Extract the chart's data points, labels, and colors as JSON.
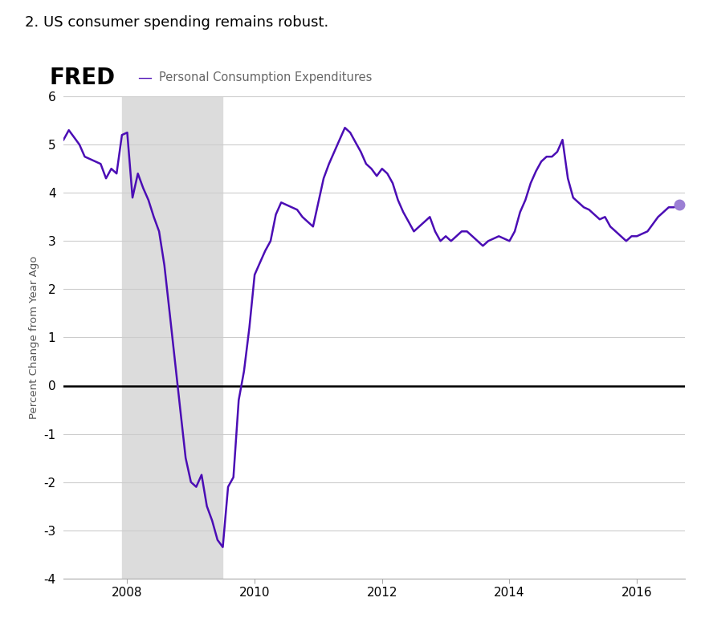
{
  "title_above": "2. US consumer spending remains robust.",
  "fred_label": "Personal Consumption Expenditures",
  "ylabel": "Percent Change from Year Ago",
  "line_color": "#4B0DB5",
  "recession_color": "#DCDCDC",
  "recession_start": 2007.917,
  "recession_end": 2009.5,
  "zero_line_color": "#000000",
  "background_color": "#ffffff",
  "xlim": [
    2007.0,
    2016.75
  ],
  "ylim": [
    -4,
    6
  ],
  "yticks": [
    -4,
    -3,
    -2,
    -1,
    0,
    1,
    2,
    3,
    4,
    5,
    6
  ],
  "xticks": [
    2008,
    2010,
    2012,
    2014,
    2016
  ],
  "grid_color": "#cccccc",
  "endpoint_color": "#9B7FD4",
  "data": {
    "dates": [
      2007.0,
      2007.083,
      2007.167,
      2007.25,
      2007.333,
      2007.417,
      2007.5,
      2007.583,
      2007.667,
      2007.75,
      2007.833,
      2007.917,
      2008.0,
      2008.083,
      2008.167,
      2008.25,
      2008.333,
      2008.417,
      2008.5,
      2008.583,
      2008.667,
      2008.75,
      2008.833,
      2008.917,
      2009.0,
      2009.083,
      2009.167,
      2009.25,
      2009.333,
      2009.417,
      2009.5,
      2009.583,
      2009.667,
      2009.75,
      2009.833,
      2009.917,
      2010.0,
      2010.083,
      2010.167,
      2010.25,
      2010.333,
      2010.417,
      2010.5,
      2010.583,
      2010.667,
      2010.75,
      2010.833,
      2010.917,
      2011.0,
      2011.083,
      2011.167,
      2011.25,
      2011.333,
      2011.417,
      2011.5,
      2011.583,
      2011.667,
      2011.75,
      2011.833,
      2011.917,
      2012.0,
      2012.083,
      2012.167,
      2012.25,
      2012.333,
      2012.417,
      2012.5,
      2012.583,
      2012.667,
      2012.75,
      2012.833,
      2012.917,
      2013.0,
      2013.083,
      2013.167,
      2013.25,
      2013.333,
      2013.417,
      2013.5,
      2013.583,
      2013.667,
      2013.75,
      2013.833,
      2013.917,
      2014.0,
      2014.083,
      2014.167,
      2014.25,
      2014.333,
      2014.417,
      2014.5,
      2014.583,
      2014.667,
      2014.75,
      2014.833,
      2014.917,
      2015.0,
      2015.083,
      2015.167,
      2015.25,
      2015.333,
      2015.417,
      2015.5,
      2015.583,
      2015.667,
      2015.75,
      2015.833,
      2015.917,
      2016.0,
      2016.083,
      2016.167,
      2016.25,
      2016.333,
      2016.417,
      2016.5,
      2016.583,
      2016.667
    ],
    "values": [
      5.1,
      5.3,
      5.15,
      5.0,
      4.75,
      4.7,
      4.65,
      4.6,
      4.3,
      4.5,
      4.4,
      5.2,
      5.25,
      3.9,
      4.4,
      4.1,
      3.85,
      3.5,
      3.2,
      2.5,
      1.5,
      0.5,
      -0.5,
      -1.5,
      -2.0,
      -2.1,
      -1.85,
      -2.5,
      -2.8,
      -3.2,
      -3.35,
      -2.1,
      -1.9,
      -0.3,
      0.3,
      1.2,
      2.3,
      2.55,
      2.8,
      3.0,
      3.55,
      3.8,
      3.75,
      3.7,
      3.65,
      3.5,
      3.4,
      3.3,
      3.8,
      4.3,
      4.6,
      4.85,
      5.1,
      5.35,
      5.25,
      5.05,
      4.85,
      4.6,
      4.5,
      4.35,
      4.5,
      4.4,
      4.2,
      3.85,
      3.6,
      3.4,
      3.2,
      3.3,
      3.4,
      3.5,
      3.2,
      3.0,
      3.1,
      3.0,
      3.1,
      3.2,
      3.2,
      3.1,
      3.0,
      2.9,
      3.0,
      3.05,
      3.1,
      3.05,
      3.0,
      3.2,
      3.6,
      3.85,
      4.2,
      4.45,
      4.65,
      4.75,
      4.75,
      4.85,
      5.1,
      4.3,
      3.9,
      3.8,
      3.7,
      3.65,
      3.55,
      3.45,
      3.5,
      3.3,
      3.2,
      3.1,
      3.0,
      3.1,
      3.1,
      3.15,
      3.2,
      3.35,
      3.5,
      3.6,
      3.7,
      3.7,
      3.75
    ]
  }
}
